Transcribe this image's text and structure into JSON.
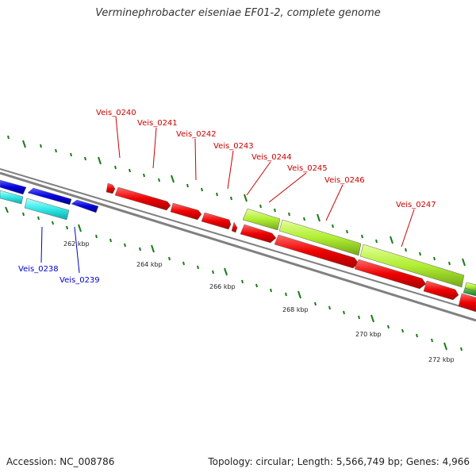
{
  "title": "Verminephrobacter eiseniae EF01-2, complete genome",
  "footer": {
    "accession": "Accession: NC_008786",
    "summary": "Topology: circular; Length: 5,566,749 bp; Genes: 4,966"
  },
  "colors": {
    "upper_gene_labels": "#cc0000",
    "lower_gene_labels": "#0000cc",
    "tick_marks": "#1a7a1a",
    "backbone": "#808080"
  },
  "scale_labels": [
    "262 kbp",
    "264 kbp",
    "266 kbp",
    "268 kbp",
    "270 kbp",
    "272 kbp"
  ],
  "gene_labels_upper": [
    "Veis_0240",
    "Veis_0241",
    "Veis_0242",
    "Veis_0243",
    "Veis_0244",
    "Veis_0245",
    "Veis_0246",
    "Veis_0247"
  ],
  "gene_labels_lower": [
    "Veis_0238",
    "Veis_0239"
  ]
}
